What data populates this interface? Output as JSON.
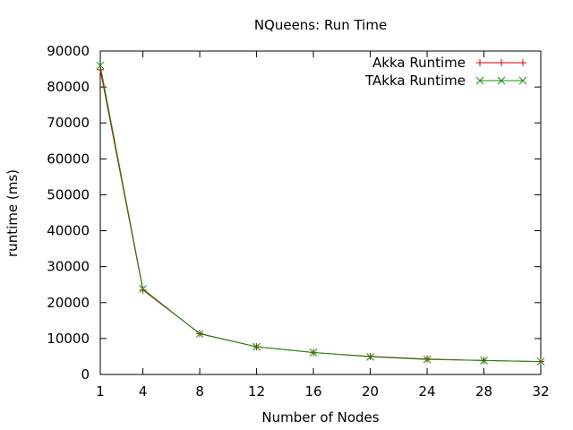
{
  "chart_data": {
    "type": "line",
    "title": "NQueens: Run Time",
    "xlabel": "Number of Nodes",
    "ylabel": "runtime (ms)",
    "x": [
      1,
      4,
      8,
      12,
      16,
      20,
      24,
      28,
      32
    ],
    "xticks": [
      "1",
      "4",
      "8",
      "12",
      "16",
      "20",
      "24",
      "28",
      "32"
    ],
    "yticks": [
      "0",
      "10000",
      "20000",
      "30000",
      "40000",
      "50000",
      "60000",
      "70000",
      "80000",
      "90000"
    ],
    "xlim": [
      1,
      32
    ],
    "ylim": [
      0,
      90000
    ],
    "grid": false,
    "legend_position": "top-right",
    "series": [
      {
        "name": "Akka Runtime",
        "color": "#d00000",
        "marker": "plus",
        "values": [
          84800,
          23500,
          11400,
          7700,
          6100,
          5000,
          4300,
          3900,
          3600
        ]
      },
      {
        "name": "TAkka Runtime",
        "color": "#109010",
        "marker": "x",
        "values": [
          86000,
          23800,
          11300,
          7700,
          6100,
          4900,
          4200,
          3900,
          3600
        ]
      }
    ]
  }
}
